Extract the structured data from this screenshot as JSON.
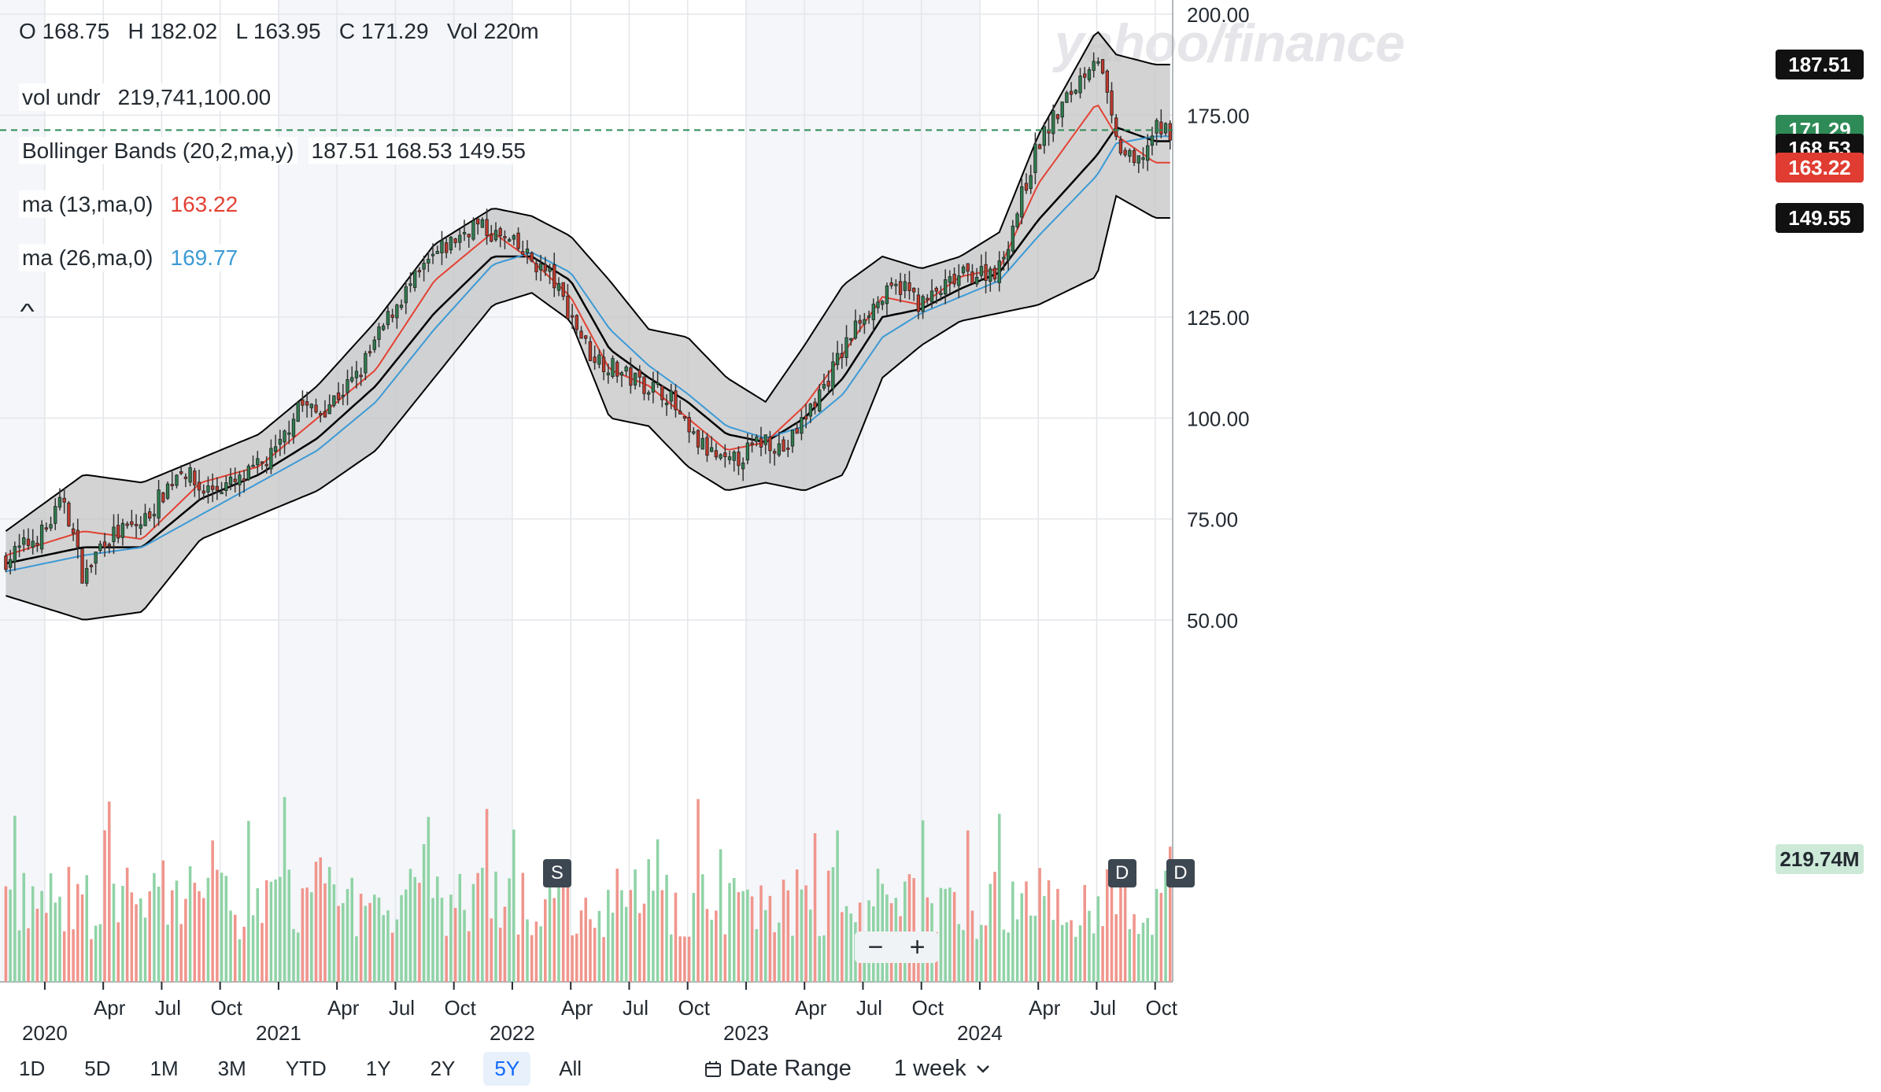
{
  "watermark": "yahoo/finance",
  "ohlc": {
    "o_label": "O",
    "o": "168.75",
    "h_label": "H",
    "h": "182.02",
    "l_label": "L",
    "l": "163.95",
    "c_label": "C",
    "c": "171.29",
    "vol_label": "Vol",
    "vol": "220m"
  },
  "legend": {
    "vol_undr": {
      "name": "vol undr",
      "value": "219,741,100.00"
    },
    "bollinger": {
      "name": "Bollinger Bands (20,2,ma,y)",
      "value": "187.51 168.53 149.55"
    },
    "ma13": {
      "name": "ma (13,ma,0)",
      "value": "163.22",
      "color": "#e34234"
    },
    "ma26": {
      "name": "ma (26,ma,0)",
      "value": "169.77",
      "color": "#3c9ad6"
    }
  },
  "price_tags": [
    {
      "label": "187.51",
      "color": "#111111",
      "value": 187.51
    },
    {
      "label": "171.29",
      "color": "#2e8b57",
      "value": 171.29
    },
    {
      "label": "168.53",
      "color": "#111111",
      "value": 168.53
    },
    {
      "label": "163.22",
      "color": "#e03c31",
      "value": 163.22
    },
    {
      "label": "149.55",
      "color": "#111111",
      "value": 149.55
    }
  ],
  "volume_tag": {
    "label": "219.74M",
    "color": "#cde9d8",
    "text_color": "#232a31"
  },
  "events": [
    {
      "label": "S",
      "date": "2022-03"
    },
    {
      "label": "D",
      "date": "2024-08"
    },
    {
      "label": "D",
      "date": "2024-11"
    }
  ],
  "zoom": {
    "minus": "−",
    "plus": "+"
  },
  "ranges": [
    "1D",
    "5D",
    "1M",
    "3M",
    "YTD",
    "1Y",
    "2Y",
    "5Y",
    "All"
  ],
  "active_range": "5Y",
  "date_range_label": "Date Range",
  "interval_label": "1 week",
  "chart_data": {
    "type": "candlestick",
    "interval": "weekly",
    "x_range": [
      "2019-11",
      "2024-10"
    ],
    "y_range": [
      42,
      202
    ],
    "y_ticks": [
      200.0,
      175.0,
      125.0,
      100.0,
      75.0,
      50.0
    ],
    "y_tick_labels": [
      "200.00",
      "175.00",
      "125.00",
      "100.00",
      "75.00",
      "50.00"
    ],
    "x_tick_labels": [
      {
        "label": "2020",
        "date": "2020-01",
        "year": true
      },
      {
        "label": "Apr",
        "date": "2020-04"
      },
      {
        "label": "Jul",
        "date": "2020-07"
      },
      {
        "label": "Oct",
        "date": "2020-10"
      },
      {
        "label": "2021",
        "date": "2021-01",
        "year": true
      },
      {
        "label": "Apr",
        "date": "2021-04"
      },
      {
        "label": "Jul",
        "date": "2021-07"
      },
      {
        "label": "Oct",
        "date": "2021-10"
      },
      {
        "label": "2022",
        "date": "2022-01",
        "year": true
      },
      {
        "label": "Apr",
        "date": "2022-04"
      },
      {
        "label": "Jul",
        "date": "2022-07"
      },
      {
        "label": "Oct",
        "date": "2022-10"
      },
      {
        "label": "2023",
        "date": "2023-01",
        "year": true
      },
      {
        "label": "Apr",
        "date": "2023-04"
      },
      {
        "label": "Jul",
        "date": "2023-07"
      },
      {
        "label": "Oct",
        "date": "2023-10"
      },
      {
        "label": "2024",
        "date": "2024-01",
        "year": true
      },
      {
        "label": "Apr",
        "date": "2024-04"
      },
      {
        "label": "Jul",
        "date": "2024-07"
      },
      {
        "label": "Oct",
        "date": "2024-10"
      }
    ],
    "last_close": 171.29,
    "volume_max_millions": 350,
    "close_path": [
      [
        "2019-11",
        65
      ],
      [
        "2020-01",
        72
      ],
      [
        "2020-02",
        80
      ],
      [
        "2020-03",
        60
      ],
      [
        "2020-04",
        70
      ],
      [
        "2020-06",
        74
      ],
      [
        "2020-08",
        88
      ],
      [
        "2020-09",
        82
      ],
      [
        "2020-11",
        84
      ],
      [
        "2021-01",
        92
      ],
      [
        "2021-02",
        104
      ],
      [
        "2021-03",
        101
      ],
      [
        "2021-05",
        110
      ],
      [
        "2021-07",
        128
      ],
      [
        "2021-09",
        140
      ],
      [
        "2021-11",
        148
      ],
      [
        "2022-01",
        143
      ],
      [
        "2022-03",
        135
      ],
      [
        "2022-05",
        116
      ],
      [
        "2022-07",
        110
      ],
      [
        "2022-09",
        106
      ],
      [
        "2022-10",
        96
      ],
      [
        "2022-12",
        88
      ],
      [
        "2023-02",
        95
      ],
      [
        "2023-03",
        92
      ],
      [
        "2023-05",
        108
      ],
      [
        "2023-07",
        126
      ],
      [
        "2023-09",
        133
      ],
      [
        "2023-10",
        128
      ],
      [
        "2023-12",
        135
      ],
      [
        "2024-02",
        137
      ],
      [
        "2024-04",
        168
      ],
      [
        "2024-06",
        183
      ],
      [
        "2024-07",
        191
      ],
      [
        "2024-08",
        168
      ],
      [
        "2024-09",
        162
      ],
      [
        "2024-10",
        171.29
      ]
    ],
    "bollinger_upper": [
      [
        "2019-11",
        72
      ],
      [
        "2020-03",
        86
      ],
      [
        "2020-06",
        84
      ],
      [
        "2020-09",
        90
      ],
      [
        "2020-12",
        96
      ],
      [
        "2021-03",
        108
      ],
      [
        "2021-06",
        124
      ],
      [
        "2021-09",
        143
      ],
      [
        "2021-12",
        152
      ],
      [
        "2022-02",
        150
      ],
      [
        "2022-04",
        145
      ],
      [
        "2022-06",
        134
      ],
      [
        "2022-08",
        122
      ],
      [
        "2022-10",
        120
      ],
      [
        "2022-12",
        110
      ],
      [
        "2023-02",
        104
      ],
      [
        "2023-04",
        118
      ],
      [
        "2023-06",
        133
      ],
      [
        "2023-08",
        140
      ],
      [
        "2023-10",
        137
      ],
      [
        "2023-12",
        140
      ],
      [
        "2024-02",
        146
      ],
      [
        "2024-04",
        170
      ],
      [
        "2024-07",
        196
      ],
      [
        "2024-08",
        190
      ],
      [
        "2024-10",
        187.51
      ]
    ],
    "bollinger_lower": [
      [
        "2019-11",
        56
      ],
      [
        "2020-03",
        50
      ],
      [
        "2020-06",
        52
      ],
      [
        "2020-09",
        70
      ],
      [
        "2020-12",
        76
      ],
      [
        "2021-03",
        82
      ],
      [
        "2021-06",
        92
      ],
      [
        "2021-09",
        110
      ],
      [
        "2021-12",
        128
      ],
      [
        "2022-02",
        131
      ],
      [
        "2022-04",
        124
      ],
      [
        "2022-06",
        100
      ],
      [
        "2022-08",
        98
      ],
      [
        "2022-10",
        88
      ],
      [
        "2022-12",
        82
      ],
      [
        "2023-02",
        84
      ],
      [
        "2023-04",
        82
      ],
      [
        "2023-06",
        86
      ],
      [
        "2023-08",
        110
      ],
      [
        "2023-10",
        118
      ],
      [
        "2023-12",
        124
      ],
      [
        "2024-02",
        126
      ],
      [
        "2024-04",
        128
      ],
      [
        "2024-07",
        135
      ],
      [
        "2024-08",
        155
      ],
      [
        "2024-10",
        149.55
      ]
    ],
    "bollinger_middle": [
      [
        "2019-11",
        64
      ],
      [
        "2020-03",
        68
      ],
      [
        "2020-06",
        68
      ],
      [
        "2020-09",
        80
      ],
      [
        "2020-12",
        86
      ],
      [
        "2021-03",
        95
      ],
      [
        "2021-06",
        108
      ],
      [
        "2021-09",
        126
      ],
      [
        "2021-12",
        140
      ],
      [
        "2022-02",
        140
      ],
      [
        "2022-04",
        134
      ],
      [
        "2022-06",
        117
      ],
      [
        "2022-08",
        110
      ],
      [
        "2022-10",
        104
      ],
      [
        "2022-12",
        96
      ],
      [
        "2023-02",
        94
      ],
      [
        "2023-04",
        100
      ],
      [
        "2023-06",
        110
      ],
      [
        "2023-08",
        125
      ],
      [
        "2023-10",
        127
      ],
      [
        "2023-12",
        132
      ],
      [
        "2024-02",
        136
      ],
      [
        "2024-04",
        149
      ],
      [
        "2024-07",
        165
      ],
      [
        "2024-08",
        172
      ],
      [
        "2024-10",
        168.53
      ]
    ],
    "ma13_path": [
      [
        "2019-11",
        66
      ],
      [
        "2020-03",
        72
      ],
      [
        "2020-06",
        70
      ],
      [
        "2020-09",
        84
      ],
      [
        "2020-12",
        88
      ],
      [
        "2021-03",
        100
      ],
      [
        "2021-06",
        112
      ],
      [
        "2021-09",
        134
      ],
      [
        "2021-12",
        146
      ],
      [
        "2022-02",
        139
      ],
      [
        "2022-04",
        130
      ],
      [
        "2022-06",
        112
      ],
      [
        "2022-08",
        108
      ],
      [
        "2022-10",
        100
      ],
      [
        "2022-12",
        92
      ],
      [
        "2023-02",
        94
      ],
      [
        "2023-04",
        103
      ],
      [
        "2023-06",
        116
      ],
      [
        "2023-08",
        130
      ],
      [
        "2023-10",
        128
      ],
      [
        "2023-12",
        135
      ],
      [
        "2024-02",
        137
      ],
      [
        "2024-04",
        158
      ],
      [
        "2024-07",
        178
      ],
      [
        "2024-08",
        170
      ],
      [
        "2024-10",
        163.22
      ]
    ],
    "ma26_path": [
      [
        "2019-11",
        62
      ],
      [
        "2020-03",
        66
      ],
      [
        "2020-06",
        68
      ],
      [
        "2020-09",
        76
      ],
      [
        "2020-12",
        84
      ],
      [
        "2021-03",
        92
      ],
      [
        "2021-06",
        104
      ],
      [
        "2021-09",
        122
      ],
      [
        "2021-12",
        138
      ],
      [
        "2022-02",
        141
      ],
      [
        "2022-04",
        136
      ],
      [
        "2022-06",
        122
      ],
      [
        "2022-08",
        113
      ],
      [
        "2022-10",
        106
      ],
      [
        "2022-12",
        98
      ],
      [
        "2023-02",
        95
      ],
      [
        "2023-04",
        98
      ],
      [
        "2023-06",
        106
      ],
      [
        "2023-08",
        120
      ],
      [
        "2023-10",
        126
      ],
      [
        "2023-12",
        130
      ],
      [
        "2024-02",
        134
      ],
      [
        "2024-04",
        145
      ],
      [
        "2024-07",
        160
      ],
      [
        "2024-08",
        168
      ],
      [
        "2024-10",
        169.77
      ]
    ]
  }
}
